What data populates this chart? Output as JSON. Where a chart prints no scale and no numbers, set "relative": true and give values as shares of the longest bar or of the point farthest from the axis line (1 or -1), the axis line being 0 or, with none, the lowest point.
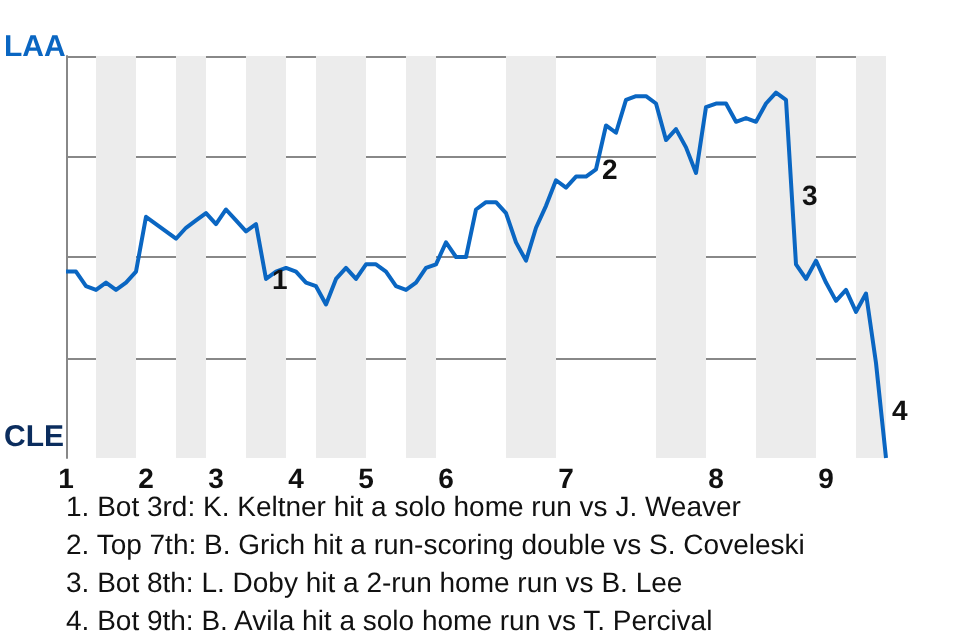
{
  "chart_data": {
    "type": "line",
    "relative": true,
    "categories": [
      "1",
      null,
      null,
      null,
      null,
      null,
      null,
      null,
      "2",
      null,
      null,
      null,
      null,
      null,
      null,
      "3",
      null,
      null,
      null,
      null,
      null,
      null,
      null,
      "4",
      null,
      null,
      null,
      null,
      null,
      null,
      "5",
      null,
      null,
      null,
      null,
      null,
      null,
      null,
      "6",
      null,
      null,
      null,
      null,
      null,
      null,
      null,
      null,
      null,
      null,
      null,
      "7",
      null,
      null,
      null,
      null,
      null,
      null,
      null,
      null,
      null,
      null,
      null,
      null,
      null,
      null,
      "8",
      null,
      null,
      null,
      null,
      null,
      null,
      null,
      null,
      null,
      null,
      "9",
      null,
      null,
      null,
      null,
      null,
      null
    ],
    "grid": "y",
    "marker": "none",
    "line_style": "solid",
    "series": [
      {
        "color": "#0a66c2",
        "values": [
          0.51,
          0.51,
          0.47,
          0.46,
          0.48,
          0.46,
          0.48,
          0.51,
          0.66,
          0.64,
          0.62,
          0.6,
          0.63,
          0.65,
          0.67,
          0.64,
          0.68,
          0.65,
          0.62,
          0.64,
          0.49,
          0.51,
          0.52,
          0.51,
          0.48,
          0.47,
          0.42,
          0.49,
          0.52,
          0.49,
          0.53,
          0.53,
          0.51,
          0.47,
          0.46,
          0.48,
          0.52,
          0.53,
          0.59,
          0.55,
          0.55,
          0.68,
          0.7,
          0.7,
          0.67,
          0.59,
          0.54,
          0.63,
          0.69,
          0.76,
          0.74,
          0.77,
          0.77,
          0.79,
          0.91,
          0.89,
          0.98,
          0.99,
          0.99,
          0.97,
          0.87,
          0.9,
          0.85,
          0.78,
          0.96,
          0.97,
          0.97,
          0.92,
          0.93,
          0.92,
          0.97,
          1.0,
          0.98,
          0.53,
          0.49,
          0.54,
          0.48,
          0.43,
          0.46,
          0.4,
          0.45,
          0.26,
          0
        ]
      }
    ],
    "annotations": [
      "LAA",
      "CLE",
      "1",
      "2",
      "3",
      "4",
      "1. Bot 3rd: K. Keltner hit a solo home run vs J. Weaver",
      "2. Top 7th: B. Grich hit a run-scoring double vs S. Coveleski",
      "3. Bot 8th: L. Doby hit a 2-run home run vs B. Lee",
      "4. Bot 9th: B. Avila hit a solo home run vs T. Percival"
    ]
  }
}
